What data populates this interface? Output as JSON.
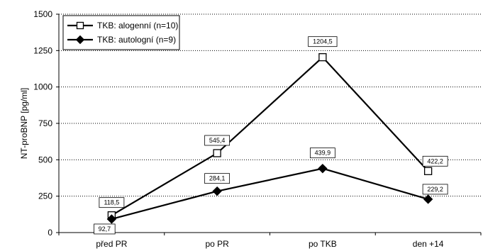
{
  "chart_data": {
    "type": "line",
    "categories": [
      "před PR",
      "po PR",
      "po TKB",
      "den +14"
    ],
    "ylabel": "NT-proBNP [pg/ml]",
    "xlabel": "",
    "ylim": [
      0,
      1500
    ],
    "yticks": [
      "0",
      "250",
      "500",
      "750",
      "1000",
      "1250",
      "1500"
    ],
    "grid": "horizontal dotted",
    "legend_position": "top-left",
    "series": [
      {
        "name": "TKB: alogenní (n=10)",
        "marker": "open-square",
        "values": [
          118.5,
          545.4,
          1204.5,
          422.2
        ],
        "labels": [
          "118,5",
          "545,4",
          "1204,5",
          "422,2"
        ]
      },
      {
        "name": "TKB: autologní (n=9)",
        "marker": "filled-diamond",
        "values": [
          92.7,
          284.1,
          439.9,
          229.2
        ],
        "labels": [
          "92,7",
          "284,1",
          "439,9",
          "229,2"
        ]
      }
    ]
  }
}
